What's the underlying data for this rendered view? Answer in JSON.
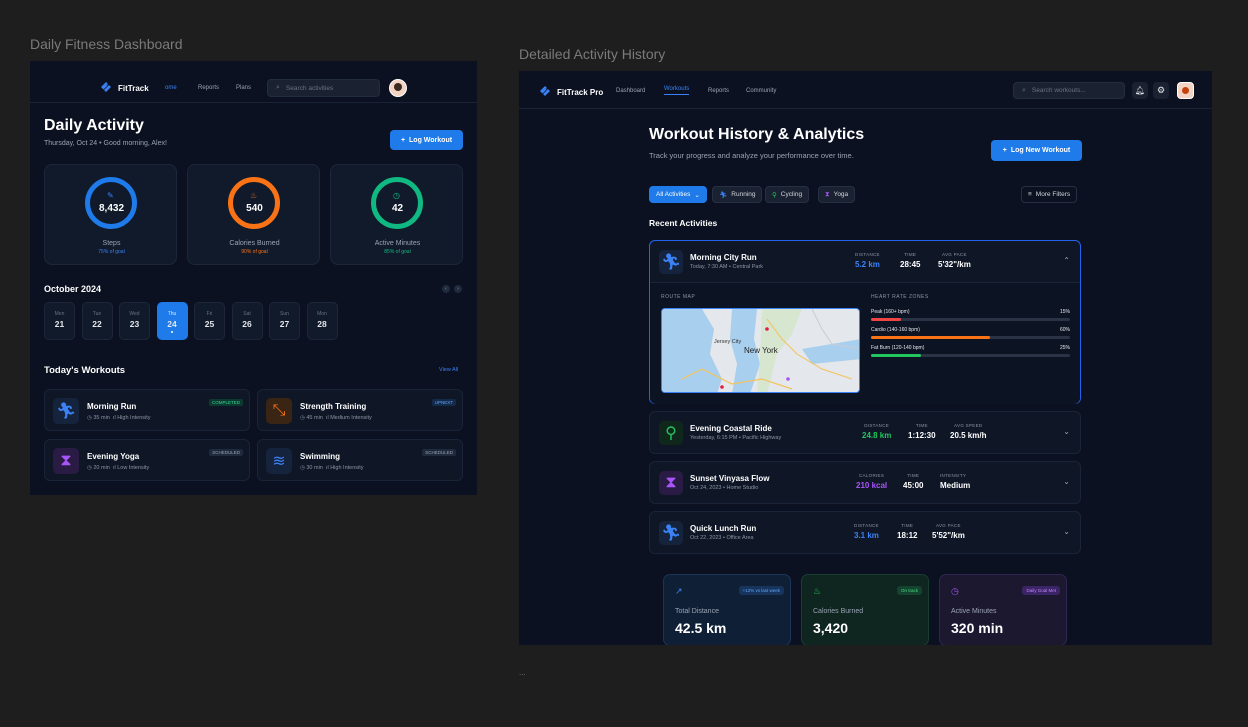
{
  "frame_titles": {
    "left": "Daily Fitness Dashboard",
    "right": "Detailed Activity History"
  },
  "footer_note": "...",
  "dashboard": {
    "nav": {
      "brand": "FitTrack",
      "links": [
        "ome",
        "Reports",
        "Plans"
      ],
      "active_link": "ome",
      "search_placeholder": "Search activities"
    },
    "title": "Daily Activity",
    "subtitle": "Thursday, Oct 24 • Good morning, Alex!",
    "log_button": "Log Workout",
    "rings": [
      {
        "value": "8,432",
        "label": "Steps",
        "goal": "75% of goal",
        "color": "#1f7aea",
        "icon": "footprint-icon"
      },
      {
        "value": "540",
        "label": "Calories Burned",
        "goal": "90% of goal",
        "color": "#f97316",
        "icon": "flame-icon"
      },
      {
        "value": "42",
        "label": "Active Minutes",
        "goal": "85% of goal",
        "color": "#10b981",
        "icon": "timer-icon"
      }
    ],
    "calendar": {
      "month": "October 2024",
      "days": [
        {
          "name": "Mon",
          "num": "21"
        },
        {
          "name": "Tue",
          "num": "22"
        },
        {
          "name": "Wed",
          "num": "23"
        },
        {
          "name": "Thu",
          "num": "24",
          "selected": true
        },
        {
          "name": "Fri",
          "num": "25"
        },
        {
          "name": "Sat",
          "num": "26"
        },
        {
          "name": "Sun",
          "num": "27"
        },
        {
          "name": "Mon",
          "num": "28"
        }
      ]
    },
    "workouts_title": "Today's Workouts",
    "view_all": "View All",
    "workouts": [
      {
        "title": "Morning Run",
        "duration": "35 min",
        "intensity": "High Intensity",
        "badge": "COMPLETED",
        "icon": "running-icon"
      },
      {
        "title": "Strength Training",
        "duration": "45 min",
        "intensity": "Medium Intensity",
        "badge": "UPNEXT",
        "icon": "dumbbell-icon"
      },
      {
        "title": "Evening Yoga",
        "duration": "20 min",
        "intensity": "Low Intensity",
        "badge": "SCHEDULED",
        "icon": "yoga-icon"
      },
      {
        "title": "Swimming",
        "duration": "30 min",
        "intensity": "High Intensity",
        "badge": "SCHEDULED",
        "icon": "swimming-icon"
      }
    ]
  },
  "history": {
    "nav": {
      "brand": "FitTrack Pro",
      "links": [
        "Dashboard",
        "Workouts",
        "Reports",
        "Community"
      ],
      "active_link": "Workouts",
      "search_placeholder": "Search workouts..."
    },
    "title": "Workout History & Analytics",
    "subtitle": "Track your progress and analyze your performance over time.",
    "log_button": "Log New Workout",
    "filters": [
      "All Activities",
      "Running",
      "Cycling",
      "Yoga"
    ],
    "more_filters": "More Filters",
    "recent_title": "Recent Activities",
    "expanded": {
      "title": "Morning City Run",
      "meta": "Today, 7:30 AM • Central Park",
      "stats": [
        {
          "label": "DISTANCE",
          "value": "5.2 km"
        },
        {
          "label": "TIME",
          "value": "28:45"
        },
        {
          "label": "AVG PACE",
          "value": "5'32\"/km"
        }
      ],
      "route_label": "ROUTE MAP",
      "map_labels": [
        "Jersey City",
        "New York"
      ],
      "hr_label": "HEART RATE ZONES",
      "zones": [
        {
          "name": "Peak (160+ bpm)",
          "pct": "15%",
          "value": 0.15,
          "color": "#ef4444"
        },
        {
          "name": "Cardio (140-160 bpm)",
          "pct": "60%",
          "value": 0.6,
          "color": "#f97316"
        },
        {
          "name": "Fat Burn (120-140 bpm)",
          "pct": "25%",
          "value": 0.25,
          "color": "#22c55e"
        }
      ]
    },
    "activities": [
      {
        "title": "Evening Coastal Ride",
        "meta": "Yesterday, 6:15 PM • Pacific Highway",
        "color": "#22c55e",
        "icon": "bike-icon",
        "stats": [
          {
            "label": "DISTANCE",
            "value": "24.8 km"
          },
          {
            "label": "TIME",
            "value": "1:12:30"
          },
          {
            "label": "AVG SPEED",
            "value": "20.5 km/h"
          }
        ]
      },
      {
        "title": "Sunset Vinyasa Flow",
        "meta": "Oct 24, 2023 • Home Studio",
        "color": "#a855f7",
        "icon": "yoga-icon",
        "stats": [
          {
            "label": "CALORIES",
            "value": "210 kcal"
          },
          {
            "label": "TIME",
            "value": "45:00"
          },
          {
            "label": "INTENSITY",
            "value": "Medium"
          }
        ]
      },
      {
        "title": "Quick Lunch Run",
        "meta": "Oct 22, 2023 • Office Area",
        "color": "#3b82f6",
        "icon": "running-icon",
        "stats": [
          {
            "label": "DISTANCE",
            "value": "3.1 km"
          },
          {
            "label": "TIME",
            "value": "18:12"
          },
          {
            "label": "AVG PACE",
            "value": "5'52\"/km"
          }
        ]
      }
    ],
    "summary": [
      {
        "title": "Total Distance",
        "value": "42.5 km",
        "badge": "+12% vs last week",
        "icon": "trend-up-icon"
      },
      {
        "title": "Calories Burned",
        "value": "3,420",
        "badge": "On track",
        "icon": "flame-icon"
      },
      {
        "title": "Active Minutes",
        "value": "320 min",
        "badge": "Daily Goal Met",
        "icon": "timer-icon"
      }
    ]
  }
}
